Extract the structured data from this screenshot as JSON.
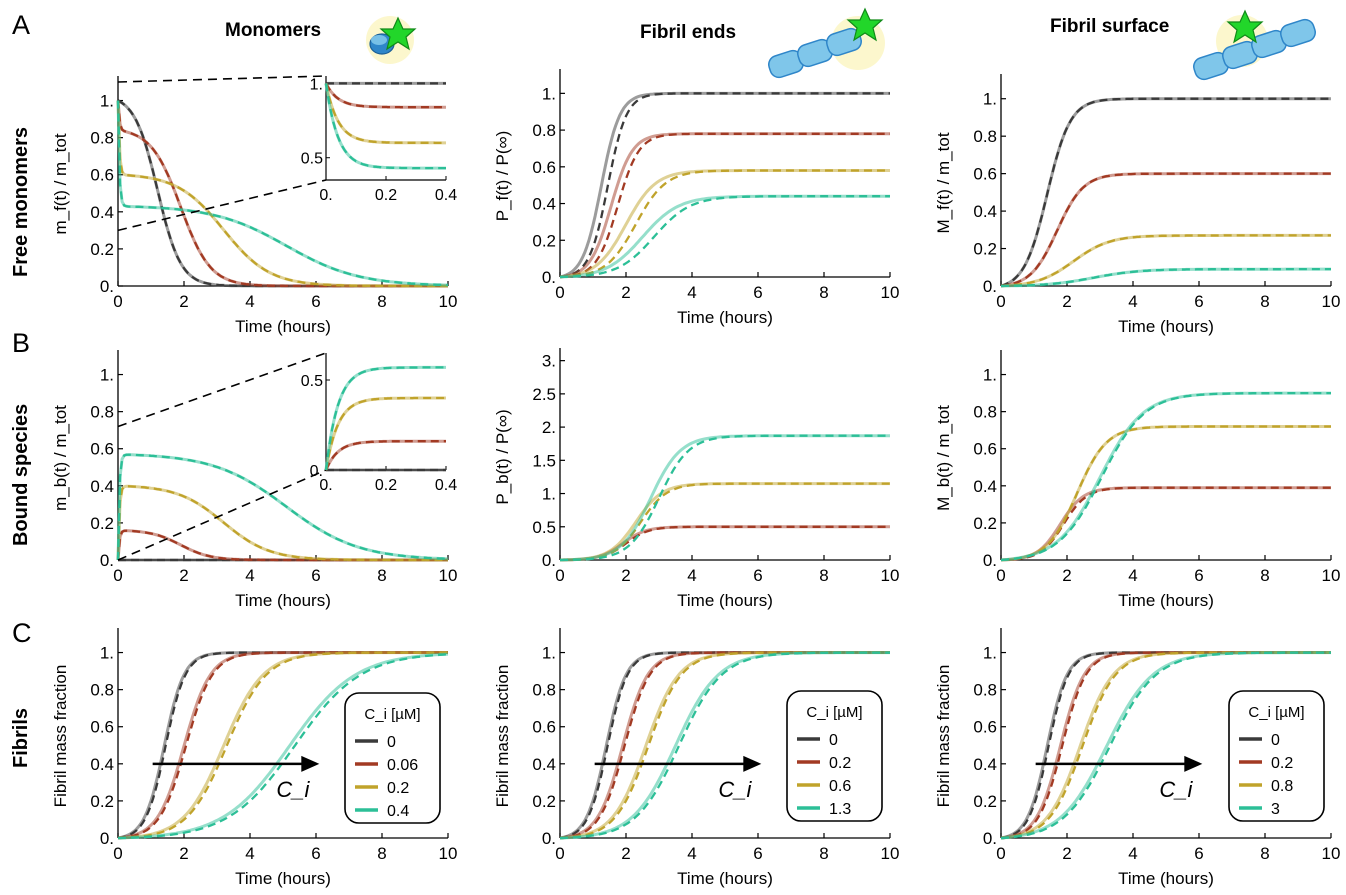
{
  "panel_letters": [
    "A",
    "B",
    "C"
  ],
  "columns": [
    "Monomers",
    "Fibril ends",
    "Fibril surface"
  ],
  "rows": [
    "Free monomers",
    "Bound species",
    "Fibrils"
  ],
  "colors": {
    "black": "#3a3a3a",
    "red": "#a23a23",
    "gold": "#c0a32b",
    "teal": "#2cbf97",
    "marker_glow": "#fbf6c4",
    "star": "#22d62a",
    "bead": "#7fc6ea",
    "monomer_blue": "#2f86c9"
  },
  "icons": [
    "star-marker-icon",
    "monomer-icon",
    "fibril-end-icon",
    "fibril-surface-icon"
  ],
  "chart_data": [
    {
      "type": "line",
      "id": "A1",
      "xlabel": "Time (hours)",
      "ylabel": "m_f(t) / m_tot",
      "xlim": [
        0,
        10
      ],
      "ylim": [
        0,
        1.1
      ],
      "xticks": [
        "0",
        "2",
        "4",
        "6",
        "8",
        "10"
      ],
      "yticks": [
        "0.",
        "0.2",
        "0.4",
        "0.6",
        "0.8",
        "1."
      ],
      "series": [
        {
          "color": "black",
          "plateau": 1.0,
          "decay_mid": 1.2,
          "decay_width": 0.35
        },
        {
          "color": "red",
          "plateau": 0.84,
          "decay_mid": 1.9,
          "decay_width": 0.45
        },
        {
          "color": "gold",
          "plateau": 0.6,
          "decay_mid": 3.2,
          "decay_width": 0.7
        },
        {
          "color": "teal",
          "plateau": 0.43,
          "decay_mid": 5.1,
          "decay_width": 1.1
        }
      ],
      "inset": {
        "xlim": [
          0,
          0.4
        ],
        "ylim": [
          0.35,
          1.05
        ],
        "xticks": [
          "0.",
          "0.2",
          "0.4"
        ],
        "yticks": [
          "0.5",
          "1."
        ],
        "series": [
          {
            "color": "black",
            "start": 1.0,
            "end": 1.0
          },
          {
            "color": "red",
            "start": 1.0,
            "end": 0.84
          },
          {
            "color": "gold",
            "start": 1.0,
            "end": 0.6
          },
          {
            "color": "teal",
            "start": 1.0,
            "end": 0.43
          }
        ]
      }
    },
    {
      "type": "line",
      "id": "A2",
      "xlabel": "Time (hours)",
      "ylabel": "P_f(t) / P(∞)",
      "xlim": [
        0,
        10
      ],
      "ylim": [
        0,
        1.1
      ],
      "xticks": [
        "0",
        "2",
        "4",
        "6",
        "8",
        "10"
      ],
      "yticks": [
        "0.",
        "0.2",
        "0.4",
        "0.6",
        "0.8",
        "1."
      ],
      "series": [
        {
          "color": "black",
          "plateau": 1.0,
          "mid_solid": 1.25,
          "mid_dashed": 1.45,
          "width": 0.28
        },
        {
          "color": "red",
          "plateau": 0.78,
          "mid_solid": 1.55,
          "mid_dashed": 1.75,
          "width": 0.32
        },
        {
          "color": "gold",
          "plateau": 0.58,
          "mid_solid": 2.0,
          "mid_dashed": 2.3,
          "width": 0.45
        },
        {
          "color": "teal",
          "plateau": 0.44,
          "mid_solid": 2.5,
          "mid_dashed": 2.85,
          "width": 0.55
        }
      ]
    },
    {
      "type": "line",
      "id": "A3",
      "xlabel": "Time (hours)",
      "ylabel": "M_f(t) / m_tot",
      "xlim": [
        0,
        10
      ],
      "ylim": [
        0,
        1.1
      ],
      "xticks": [
        "0",
        "2",
        "4",
        "6",
        "8",
        "10"
      ],
      "yticks": [
        "0.",
        "0.2",
        "0.4",
        "0.6",
        "0.8",
        "1."
      ],
      "series": [
        {
          "color": "black",
          "plateau": 1.0,
          "mid": 1.4,
          "width": 0.35
        },
        {
          "color": "red",
          "plateau": 0.6,
          "mid": 1.7,
          "width": 0.4
        },
        {
          "color": "gold",
          "plateau": 0.27,
          "mid": 2.2,
          "width": 0.55
        },
        {
          "color": "teal",
          "plateau": 0.09,
          "mid": 2.8,
          "width": 0.7
        }
      ]
    },
    {
      "type": "line",
      "id": "B1",
      "xlabel": "Time (hours)",
      "ylabel": "m_b(t) / m_tot",
      "xlim": [
        0,
        10
      ],
      "ylim": [
        0,
        1.1
      ],
      "xticks": [
        "0",
        "2",
        "4",
        "6",
        "8",
        "10"
      ],
      "yticks": [
        "0.",
        "0.2",
        "0.4",
        "0.6",
        "0.8",
        "1."
      ],
      "series": [
        {
          "color": "black",
          "plateau": 0.0,
          "decay_mid": 1.2,
          "decay_width": 0.35
        },
        {
          "color": "red",
          "plateau": 0.16,
          "decay_mid": 1.9,
          "decay_width": 0.45
        },
        {
          "color": "gold",
          "plateau": 0.4,
          "decay_mid": 3.2,
          "decay_width": 0.7
        },
        {
          "color": "teal",
          "plateau": 0.57,
          "decay_mid": 5.1,
          "decay_width": 1.1
        }
      ],
      "inset": {
        "xlim": [
          0,
          0.4
        ],
        "ylim": [
          0,
          0.65
        ],
        "xticks": [
          "0.",
          "0.2",
          "0.4"
        ],
        "yticks": [
          "0.",
          "0.5"
        ],
        "series": [
          {
            "color": "black",
            "start": 0.0,
            "end": 0.0
          },
          {
            "color": "red",
            "start": 0.0,
            "end": 0.16
          },
          {
            "color": "gold",
            "start": 0.0,
            "end": 0.4
          },
          {
            "color": "teal",
            "start": 0.0,
            "end": 0.57
          }
        ]
      }
    },
    {
      "type": "line",
      "id": "B2",
      "xlabel": "Time (hours)",
      "ylabel": "P_b(t) / P(∞)",
      "xlim": [
        0,
        10
      ],
      "ylim": [
        0,
        3.1
      ],
      "xticks": [
        "0",
        "2",
        "4",
        "6",
        "8",
        "10"
      ],
      "yticks": [
        "0.",
        "0.5",
        "1.",
        "1.5",
        "2.",
        "2.5",
        "3."
      ],
      "series": [
        {
          "color": "red",
          "plateau": 0.5,
          "mid_solid": 1.9,
          "mid_dashed": 2.0,
          "width": 0.35
        },
        {
          "color": "gold",
          "plateau": 1.15,
          "mid_solid": 2.3,
          "mid_dashed": 2.45,
          "width": 0.4
        },
        {
          "color": "teal",
          "plateau": 1.87,
          "mid_solid": 2.75,
          "mid_dashed": 3.0,
          "width": 0.45
        }
      ]
    },
    {
      "type": "line",
      "id": "B3",
      "xlabel": "Time (hours)",
      "ylabel": "M_b(t) / m_tot",
      "xlim": [
        0,
        10
      ],
      "ylim": [
        0,
        1.1
      ],
      "xticks": [
        "0",
        "2",
        "4",
        "6",
        "8",
        "10"
      ],
      "yticks": [
        "0.",
        "0.2",
        "0.4",
        "0.6",
        "0.8",
        "1."
      ],
      "series": [
        {
          "color": "red",
          "plateau": 0.39,
          "mid_solid": 1.8,
          "mid_dashed": 1.9,
          "width": 0.35
        },
        {
          "color": "gold",
          "plateau": 0.72,
          "mid_solid": 2.3,
          "mid_dashed": 2.3,
          "width": 0.45
        },
        {
          "color": "teal",
          "plateau": 0.9,
          "mid_solid": 3.0,
          "mid_dashed": 3.05,
          "width": 0.65
        }
      ]
    },
    {
      "type": "line",
      "id": "C1",
      "xlabel": "Time (hours)",
      "ylabel": "Fibril mass fraction",
      "xlim": [
        0,
        10
      ],
      "ylim": [
        0,
        1.1
      ],
      "xticks": [
        "0",
        "2",
        "4",
        "6",
        "8",
        "10"
      ],
      "yticks": [
        "0.",
        "0.2",
        "0.4",
        "0.6",
        "0.8",
        "1."
      ],
      "legend_title": "C_i [µM]",
      "arrow_label": "C_i",
      "series": [
        {
          "name": "0",
          "color": "black",
          "mid": 1.4,
          "width": 0.3
        },
        {
          "name": "0.06",
          "color": "red",
          "mid": 2.0,
          "width": 0.4
        },
        {
          "name": "0.2",
          "color": "gold",
          "mid": 3.2,
          "width": 0.6
        },
        {
          "name": "0.4",
          "color": "teal",
          "mid": 5.2,
          "width": 1.0
        }
      ]
    },
    {
      "type": "line",
      "id": "C2",
      "xlabel": "Time (hours)",
      "ylabel": "Fibril mass fraction",
      "xlim": [
        0,
        10
      ],
      "ylim": [
        0,
        1.1
      ],
      "xticks": [
        "0",
        "2",
        "4",
        "6",
        "8",
        "10"
      ],
      "yticks": [
        "0.",
        "0.2",
        "0.4",
        "0.6",
        "0.8",
        "1."
      ],
      "legend_title": "C_i [µM]",
      "arrow_label": "C_i",
      "series": [
        {
          "name": "0",
          "color": "black",
          "mid": 1.4,
          "width": 0.3
        },
        {
          "name": "0.2",
          "color": "red",
          "mid": 1.9,
          "width": 0.38
        },
        {
          "name": "0.6",
          "color": "gold",
          "mid": 2.6,
          "width": 0.5
        },
        {
          "name": "1.3",
          "color": "teal",
          "mid": 3.5,
          "width": 0.65
        }
      ]
    },
    {
      "type": "line",
      "id": "C3",
      "xlabel": "Time (hours)",
      "ylabel": "Fibril mass fraction",
      "xlim": [
        0,
        10
      ],
      "ylim": [
        0,
        1.1
      ],
      "xticks": [
        "0",
        "2",
        "4",
        "6",
        "8",
        "10"
      ],
      "yticks": [
        "0.",
        "0.2",
        "0.4",
        "0.6",
        "0.8",
        "1."
      ],
      "legend_title": "C_i [µM]",
      "arrow_label": "C_i",
      "series": [
        {
          "name": "0",
          "color": "black",
          "mid": 1.4,
          "width": 0.3
        },
        {
          "name": "0.2",
          "color": "red",
          "mid": 1.8,
          "width": 0.36
        },
        {
          "name": "0.8",
          "color": "gold",
          "mid": 2.4,
          "width": 0.5
        },
        {
          "name": "3",
          "color": "teal",
          "mid": 3.2,
          "width": 0.7
        }
      ]
    }
  ]
}
